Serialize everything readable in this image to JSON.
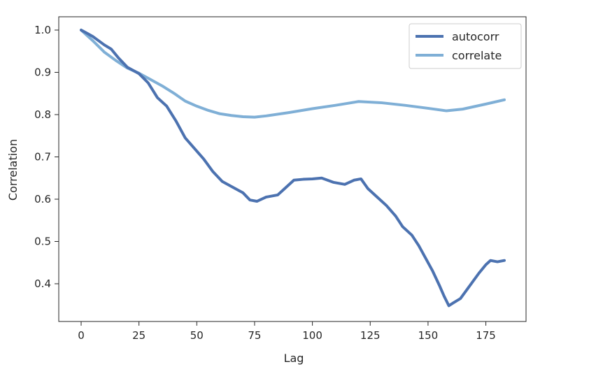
{
  "chart_data": {
    "type": "line",
    "title": "",
    "xlabel": "Lag",
    "ylabel": "Correlation",
    "xlim": [
      -8,
      191
    ],
    "ylim": [
      0.315,
      1.03
    ],
    "xticks": [
      0,
      25,
      50,
      75,
      100,
      125,
      150,
      175
    ],
    "yticks": [
      0.4,
      0.5,
      0.6,
      0.7,
      0.8,
      0.9,
      1.0
    ],
    "xtick_labels": [
      "0",
      "25",
      "50",
      "75",
      "100",
      "125",
      "150",
      "175"
    ],
    "ytick_labels": [
      "0.4",
      "0.5",
      "0.6",
      "0.7",
      "0.8",
      "0.9",
      "1.0"
    ],
    "grid": false,
    "legend_position": "top-right",
    "series": [
      {
        "name": "autocorr",
        "color": "#4c72b0",
        "points": [
          [
            0,
            1.0
          ],
          [
            5,
            0.985
          ],
          [
            10,
            0.965
          ],
          [
            13,
            0.955
          ],
          [
            16,
            0.935
          ],
          [
            20,
            0.912
          ],
          [
            25,
            0.897
          ],
          [
            29,
            0.875
          ],
          [
            33,
            0.84
          ],
          [
            37,
            0.82
          ],
          [
            41,
            0.785
          ],
          [
            45,
            0.745
          ],
          [
            49,
            0.72
          ],
          [
            53,
            0.695
          ],
          [
            57,
            0.665
          ],
          [
            61,
            0.642
          ],
          [
            65,
            0.63
          ],
          [
            70,
            0.615
          ],
          [
            73,
            0.598
          ],
          [
            76,
            0.595
          ],
          [
            80,
            0.605
          ],
          [
            85,
            0.61
          ],
          [
            88,
            0.625
          ],
          [
            92,
            0.645
          ],
          [
            96,
            0.647
          ],
          [
            100,
            0.648
          ],
          [
            104,
            0.65
          ],
          [
            109,
            0.64
          ],
          [
            114,
            0.635
          ],
          [
            118,
            0.645
          ],
          [
            121,
            0.648
          ],
          [
            124,
            0.625
          ],
          [
            128,
            0.605
          ],
          [
            132,
            0.585
          ],
          [
            136,
            0.56
          ],
          [
            139,
            0.535
          ],
          [
            143,
            0.515
          ],
          [
            146,
            0.49
          ],
          [
            149,
            0.46
          ],
          [
            152,
            0.43
          ],
          [
            155,
            0.395
          ],
          [
            157,
            0.37
          ],
          [
            159,
            0.348
          ],
          [
            161,
            0.355
          ],
          [
            164,
            0.365
          ],
          [
            168,
            0.395
          ],
          [
            172,
            0.425
          ],
          [
            175,
            0.445
          ],
          [
            177,
            0.455
          ],
          [
            180,
            0.452
          ],
          [
            183,
            0.455
          ]
        ]
      },
      {
        "name": "correlate",
        "color": "#7fafd6",
        "points": [
          [
            0,
            1.0
          ],
          [
            5,
            0.975
          ],
          [
            10,
            0.948
          ],
          [
            15,
            0.928
          ],
          [
            20,
            0.91
          ],
          [
            25,
            0.898
          ],
          [
            30,
            0.883
          ],
          [
            35,
            0.868
          ],
          [
            40,
            0.851
          ],
          [
            45,
            0.832
          ],
          [
            50,
            0.82
          ],
          [
            55,
            0.81
          ],
          [
            60,
            0.802
          ],
          [
            65,
            0.798
          ],
          [
            70,
            0.795
          ],
          [
            75,
            0.794
          ],
          [
            80,
            0.797
          ],
          [
            90,
            0.805
          ],
          [
            100,
            0.814
          ],
          [
            110,
            0.822
          ],
          [
            120,
            0.831
          ],
          [
            130,
            0.828
          ],
          [
            140,
            0.822
          ],
          [
            150,
            0.815
          ],
          [
            158,
            0.809
          ],
          [
            165,
            0.813
          ],
          [
            175,
            0.825
          ],
          [
            183,
            0.835
          ]
        ]
      }
    ]
  }
}
